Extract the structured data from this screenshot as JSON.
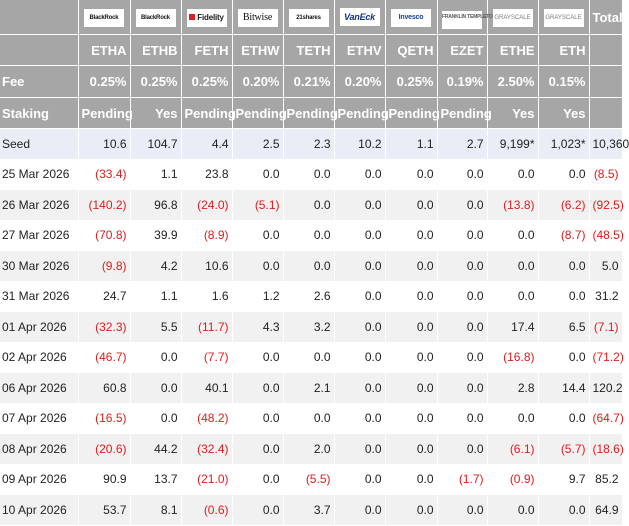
{
  "logos": [
    {
      "name": "BlackRock",
      "style": "plain"
    },
    {
      "name": "BlackRock",
      "style": "plain"
    },
    {
      "name": "Fidelity",
      "style": "fid"
    },
    {
      "name": "Bitwise",
      "style": "serif"
    },
    {
      "name": "21shares",
      "style": "plain"
    },
    {
      "name": "VanEck",
      "style": "blue"
    },
    {
      "name": "Invesco",
      "style": "inv"
    },
    {
      "name": "FRANKLIN TEMPLETON",
      "style": "frank"
    },
    {
      "name": "GRAYSCALE",
      "style": "gray"
    },
    {
      "name": "GRAYSCALE",
      "style": "gray"
    }
  ],
  "total_label": "Total",
  "tickers": [
    "ETHA",
    "ETHB",
    "FETH",
    "ETHW",
    "TETH",
    "ETHV",
    "QETH",
    "EZET",
    "ETHE",
    "ETH"
  ],
  "fee": {
    "label": "Fee",
    "values": [
      "0.25%",
      "0.25%",
      "0.25%",
      "0.20%",
      "0.21%",
      "0.20%",
      "0.25%",
      "0.19%",
      "2.50%",
      "0.15%"
    ]
  },
  "staking": {
    "label": "Staking",
    "values": [
      "Pending",
      "Yes",
      "Pending",
      "Pending",
      "Pending",
      "Pending",
      "Pending",
      "Pending",
      "Yes",
      "Yes"
    ]
  },
  "rows": [
    {
      "label": "Seed",
      "cells": [
        "10.6",
        "104.7",
        "4.4",
        "2.5",
        "2.3",
        "10.2",
        "1.1",
        "2.7",
        "9,199*",
        "1,023*",
        "10,360"
      ]
    },
    {
      "label": "25 Mar 2026",
      "cells": [
        "(33.4)",
        "1.1",
        "23.8",
        "0.0",
        "0.0",
        "0.0",
        "0.0",
        "0.0",
        "0.0",
        "0.0",
        "(8.5)"
      ]
    },
    {
      "label": "26 Mar 2026",
      "cells": [
        "(140.2)",
        "96.8",
        "(24.0)",
        "(5.1)",
        "0.0",
        "0.0",
        "0.0",
        "0.0",
        "(13.8)",
        "(6.2)",
        "(92.5)"
      ]
    },
    {
      "label": "27 Mar 2026",
      "cells": [
        "(70.8)",
        "39.9",
        "(8.9)",
        "0.0",
        "0.0",
        "0.0",
        "0.0",
        "0.0",
        "0.0",
        "(8.7)",
        "(48.5)"
      ]
    },
    {
      "label": "30 Mar 2026",
      "cells": [
        "(9.8)",
        "4.2",
        "10.6",
        "0.0",
        "0.0",
        "0.0",
        "0.0",
        "0.0",
        "0.0",
        "0.0",
        "5.0"
      ]
    },
    {
      "label": "31 Mar 2026",
      "cells": [
        "24.7",
        "1.1",
        "1.6",
        "1.2",
        "2.6",
        "0.0",
        "0.0",
        "0.0",
        "0.0",
        "0.0",
        "31.2"
      ]
    },
    {
      "label": "01 Apr 2026",
      "cells": [
        "(32.3)",
        "5.5",
        "(11.7)",
        "4.3",
        "3.2",
        "0.0",
        "0.0",
        "0.0",
        "17.4",
        "6.5",
        "(7.1)"
      ]
    },
    {
      "label": "02 Apr 2026",
      "cells": [
        "(46.7)",
        "0.0",
        "(7.7)",
        "0.0",
        "0.0",
        "0.0",
        "0.0",
        "0.0",
        "(16.8)",
        "0.0",
        "(71.2)"
      ]
    },
    {
      "label": "06 Apr 2026",
      "cells": [
        "60.8",
        "0.0",
        "40.1",
        "0.0",
        "2.1",
        "0.0",
        "0.0",
        "0.0",
        "2.8",
        "14.4",
        "120.2"
      ]
    },
    {
      "label": "07 Apr 2026",
      "cells": [
        "(16.5)",
        "0.0",
        "(48.2)",
        "0.0",
        "0.0",
        "0.0",
        "0.0",
        "0.0",
        "0.0",
        "0.0",
        "(64.7)"
      ]
    },
    {
      "label": "08 Apr 2026",
      "cells": [
        "(20.6)",
        "44.2",
        "(32.4)",
        "0.0",
        "2.0",
        "0.0",
        "0.0",
        "0.0",
        "(6.1)",
        "(5.7)",
        "(18.6)"
      ]
    },
    {
      "label": "09 Apr 2026",
      "cells": [
        "90.9",
        "13.7",
        "(21.0)",
        "0.0",
        "(5.5)",
        "0.0",
        "0.0",
        "(1.7)",
        "(0.9)",
        "9.7",
        "85.2"
      ]
    },
    {
      "label": "10 Apr 2026",
      "cells": [
        "53.7",
        "8.1",
        "(0.6)",
        "0.0",
        "3.7",
        "0.0",
        "0.0",
        "0.0",
        "0.0",
        "0.0",
        "64.9"
      ]
    }
  ],
  "colors": {
    "header_bg": "#a6a6a6",
    "seed_bg": "#e8edf6",
    "alt_bg": "#f1f1f1",
    "negative": "#e21b1b"
  }
}
